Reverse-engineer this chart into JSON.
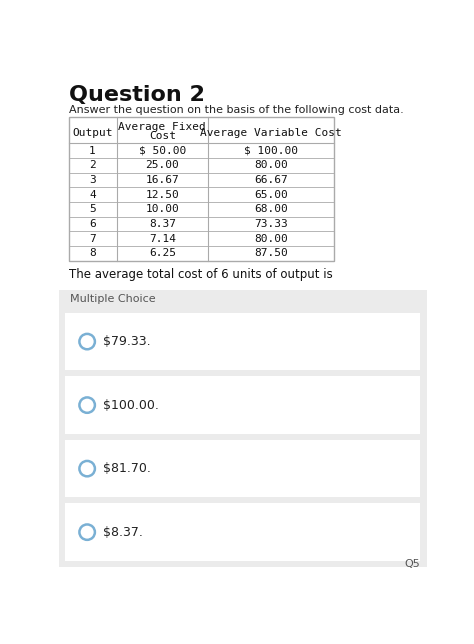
{
  "title": "Question 2",
  "subtitle": "Answer the question on the basis of the following cost data.",
  "table_headers_line1": [
    "",
    "Average Fixed",
    ""
  ],
  "table_headers_line2": [
    "Output",
    "Cost",
    "Average Variable Cost"
  ],
  "table_rows": [
    [
      "1",
      "$ 50.00",
      "$ 100.00"
    ],
    [
      "2",
      "25.00",
      "80.00"
    ],
    [
      "3",
      "16.67",
      "66.67"
    ],
    [
      "4",
      "12.50",
      "65.00"
    ],
    [
      "5",
      "10.00",
      "68.00"
    ],
    [
      "6",
      "8.37",
      "73.33"
    ],
    [
      "7",
      "7.14",
      "80.00"
    ],
    [
      "8",
      "6.25",
      "87.50"
    ]
  ],
  "question_text": "The average total cost of 6 units of output is",
  "section_label": "Multiple Choice",
  "choices": [
    "$79.33.",
    "$100.00.",
    "$81.70.",
    "$8.37."
  ],
  "footer": "Q5",
  "bg_color": "#ffffff",
  "table_border_color": "#aaaaaa",
  "mc_bg_color": "#ebebeb",
  "choice_bg_color": "#ffffff",
  "circle_color": "#7ab0d4",
  "title_fontsize": 16,
  "subtitle_fontsize": 8,
  "table_fontsize": 8,
  "question_fontsize": 8.5,
  "mc_label_fontsize": 8,
  "choice_fontsize": 9
}
